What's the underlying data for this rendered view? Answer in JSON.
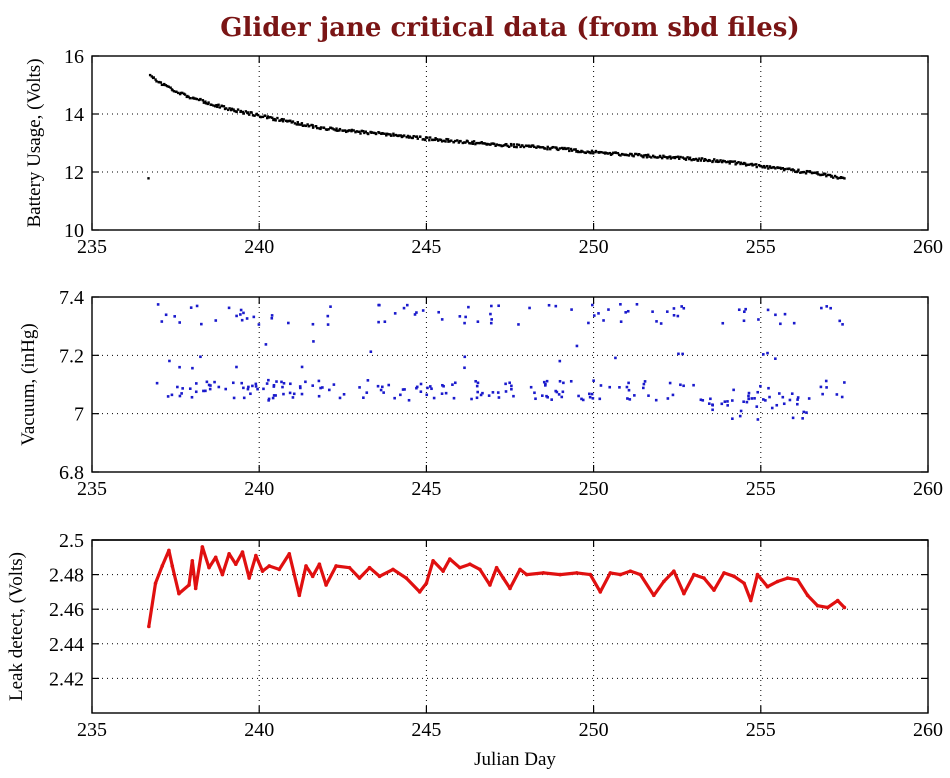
{
  "figure": {
    "title": "Glider jane critical data (from sbd files)"
  },
  "chart_data": [
    {
      "type": "scatter",
      "name": "battery",
      "title": "Glider jane critical data (from sbd files)",
      "xlabel": "",
      "ylabel": "Battery Usage, (Volts)",
      "xlim": [
        235,
        260
      ],
      "ylim": [
        10,
        16
      ],
      "xticks": [
        235,
        240,
        245,
        250,
        255,
        260
      ],
      "yticks": [
        10,
        12,
        14,
        16
      ],
      "xtick_labels": [
        "235",
        "240",
        "245",
        "250",
        "255",
        "260"
      ],
      "ytick_labels": [
        "10",
        "12",
        "14",
        "16"
      ],
      "grid": true,
      "color": "#000000",
      "series_shape": {
        "kind": "decay",
        "x_start": 236.7,
        "x_end": 257.5,
        "anchors": [
          [
            236.7,
            15.4
          ],
          [
            237.0,
            15.1
          ],
          [
            237.5,
            14.8
          ],
          [
            238.0,
            14.55
          ],
          [
            239.0,
            14.2
          ],
          [
            240.0,
            13.95
          ],
          [
            241.0,
            13.7
          ],
          [
            242.0,
            13.5
          ],
          [
            243.0,
            13.38
          ],
          [
            244.0,
            13.28
          ],
          [
            245.0,
            13.15
          ],
          [
            246.0,
            13.05
          ],
          [
            247.0,
            12.95
          ],
          [
            248.0,
            12.88
          ],
          [
            249.0,
            12.8
          ],
          [
            250.0,
            12.68
          ],
          [
            251.0,
            12.6
          ],
          [
            252.0,
            12.52
          ],
          [
            253.0,
            12.45
          ],
          [
            254.0,
            12.35
          ],
          [
            255.0,
            12.2
          ],
          [
            256.0,
            12.05
          ],
          [
            257.0,
            11.9
          ],
          [
            257.5,
            11.75
          ]
        ],
        "count": 520,
        "noise": 0.05
      }
    },
    {
      "type": "scatter",
      "name": "vacuum",
      "xlabel": "",
      "ylabel": "Vacuum, (inHg)",
      "xlim": [
        235,
        260
      ],
      "ylim": [
        6.8,
        7.4
      ],
      "xticks": [
        235,
        240,
        245,
        250,
        255,
        260
      ],
      "yticks": [
        6.8,
        7.0,
        7.2,
        7.4
      ],
      "xtick_labels": [
        "235",
        "240",
        "245",
        "250",
        "255",
        "260"
      ],
      "ytick_labels": [
        "6.8",
        "7",
        "7.2",
        "7.4"
      ],
      "grid": true,
      "color": "#1a1acc",
      "series_shape": {
        "kind": "bimodal",
        "x_start": 236.8,
        "x_end": 257.5,
        "lower_level": 7.08,
        "lower_spread": 0.035,
        "upper_level": 7.34,
        "upper_spread": 0.035,
        "count": 320
      }
    },
    {
      "type": "line",
      "name": "leak",
      "xlabel": "Julian Day",
      "ylabel": "Leak detect, (Volts)",
      "xlim": [
        235,
        260
      ],
      "ylim": [
        2.4,
        2.5
      ],
      "xticks": [
        235,
        240,
        245,
        250,
        255,
        260
      ],
      "yticks": [
        2.42,
        2.44,
        2.46,
        2.48,
        2.5
      ],
      "xtick_labels": [
        "235",
        "240",
        "245",
        "250",
        "255",
        "260"
      ],
      "ytick_labels": [
        "2.42",
        "2.44",
        "2.46",
        "2.48",
        "2.5"
      ],
      "grid": true,
      "color": "#e01010",
      "x": [
        236.7,
        236.9,
        237.1,
        237.3,
        237.4,
        237.6,
        237.9,
        238.0,
        238.1,
        238.3,
        238.5,
        238.7,
        238.9,
        239.1,
        239.3,
        239.5,
        239.7,
        239.9,
        240.1,
        240.3,
        240.6,
        240.9,
        241.2,
        241.4,
        241.6,
        241.8,
        242.0,
        242.3,
        242.7,
        243.0,
        243.3,
        243.6,
        244.0,
        244.4,
        244.8,
        245.0,
        245.2,
        245.5,
        245.7,
        246.0,
        246.3,
        246.6,
        246.9,
        247.1,
        247.3,
        247.5,
        247.8,
        248.0,
        248.5,
        249.0,
        249.5,
        249.9,
        250.2,
        250.5,
        250.8,
        251.1,
        251.4,
        251.8,
        252.1,
        252.4,
        252.7,
        253.0,
        253.3,
        253.6,
        253.9,
        254.2,
        254.5,
        254.7,
        254.9,
        255.2,
        255.5,
        255.8,
        256.1,
        256.4,
        256.7,
        257.0,
        257.3,
        257.5
      ],
      "y": [
        2.45,
        2.475,
        2.485,
        2.494,
        2.485,
        2.469,
        2.474,
        2.488,
        2.472,
        2.496,
        2.484,
        2.49,
        2.48,
        2.492,
        2.486,
        2.493,
        2.478,
        2.491,
        2.482,
        2.485,
        2.483,
        2.492,
        2.468,
        2.485,
        2.479,
        2.486,
        2.474,
        2.485,
        2.484,
        2.478,
        2.484,
        2.479,
        2.483,
        2.478,
        2.47,
        2.475,
        2.488,
        2.482,
        2.489,
        2.484,
        2.486,
        2.483,
        2.474,
        2.484,
        2.478,
        2.472,
        2.483,
        2.48,
        2.481,
        2.48,
        2.481,
        2.48,
        2.47,
        2.481,
        2.48,
        2.482,
        2.48,
        2.468,
        2.476,
        2.482,
        2.469,
        2.48,
        2.478,
        2.471,
        2.481,
        2.479,
        2.475,
        2.465,
        2.48,
        2.473,
        2.476,
        2.478,
        2.477,
        2.468,
        2.462,
        2.461,
        2.465,
        2.461
      ],
      "reference_line": 2.5
    }
  ]
}
